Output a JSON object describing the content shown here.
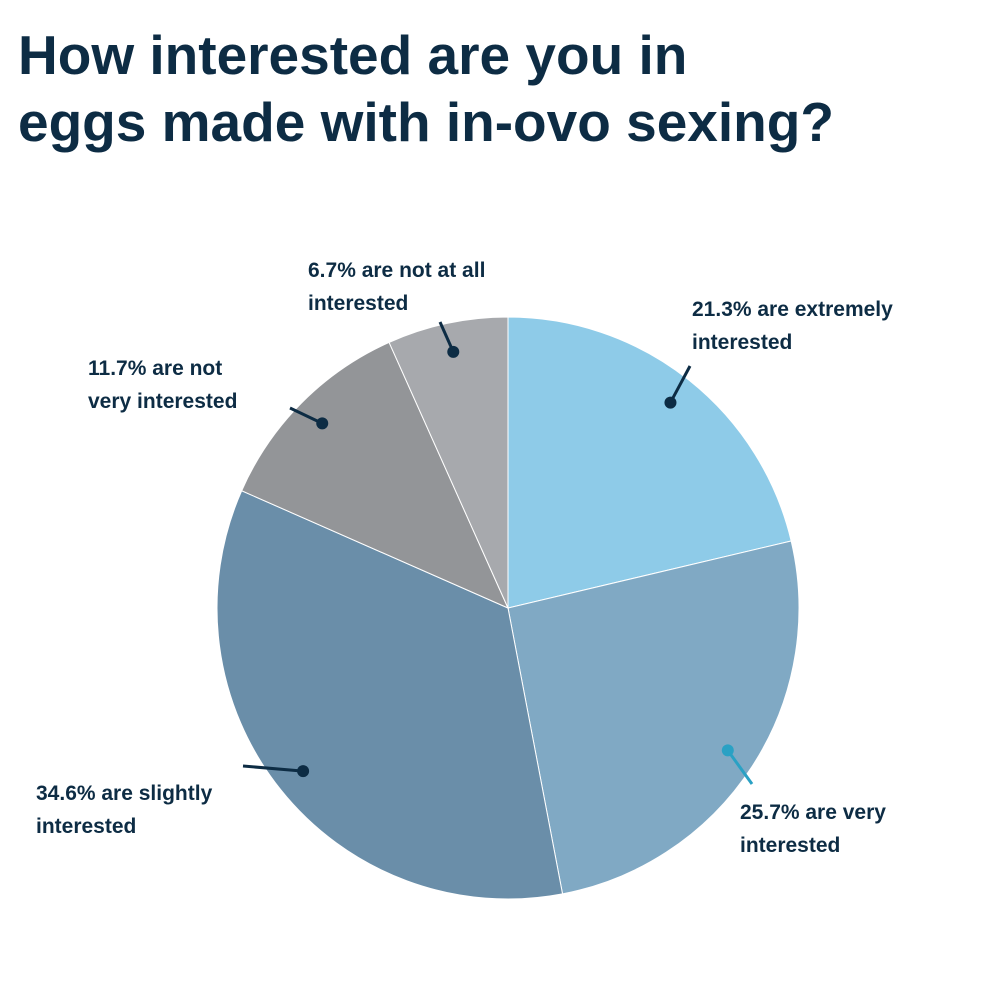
{
  "chart_data": {
    "type": "pie",
    "title": "How interested are you in\neggs made with in-ovo sexing?",
    "values": [
      21.3,
      25.7,
      34.6,
      11.7,
      6.7
    ],
    "value_labels": [
      "21.3% are extremely\ninterested",
      "25.7% are very\ninterested",
      "34.6% are slightly\ninterested",
      "11.7% are not\nvery interested",
      "6.7% are not at all\ninterested"
    ],
    "colors": [
      "#8ecbe8",
      "#80a9c4",
      "#6a8ea9",
      "#939598",
      "#a7a9ad"
    ]
  }
}
